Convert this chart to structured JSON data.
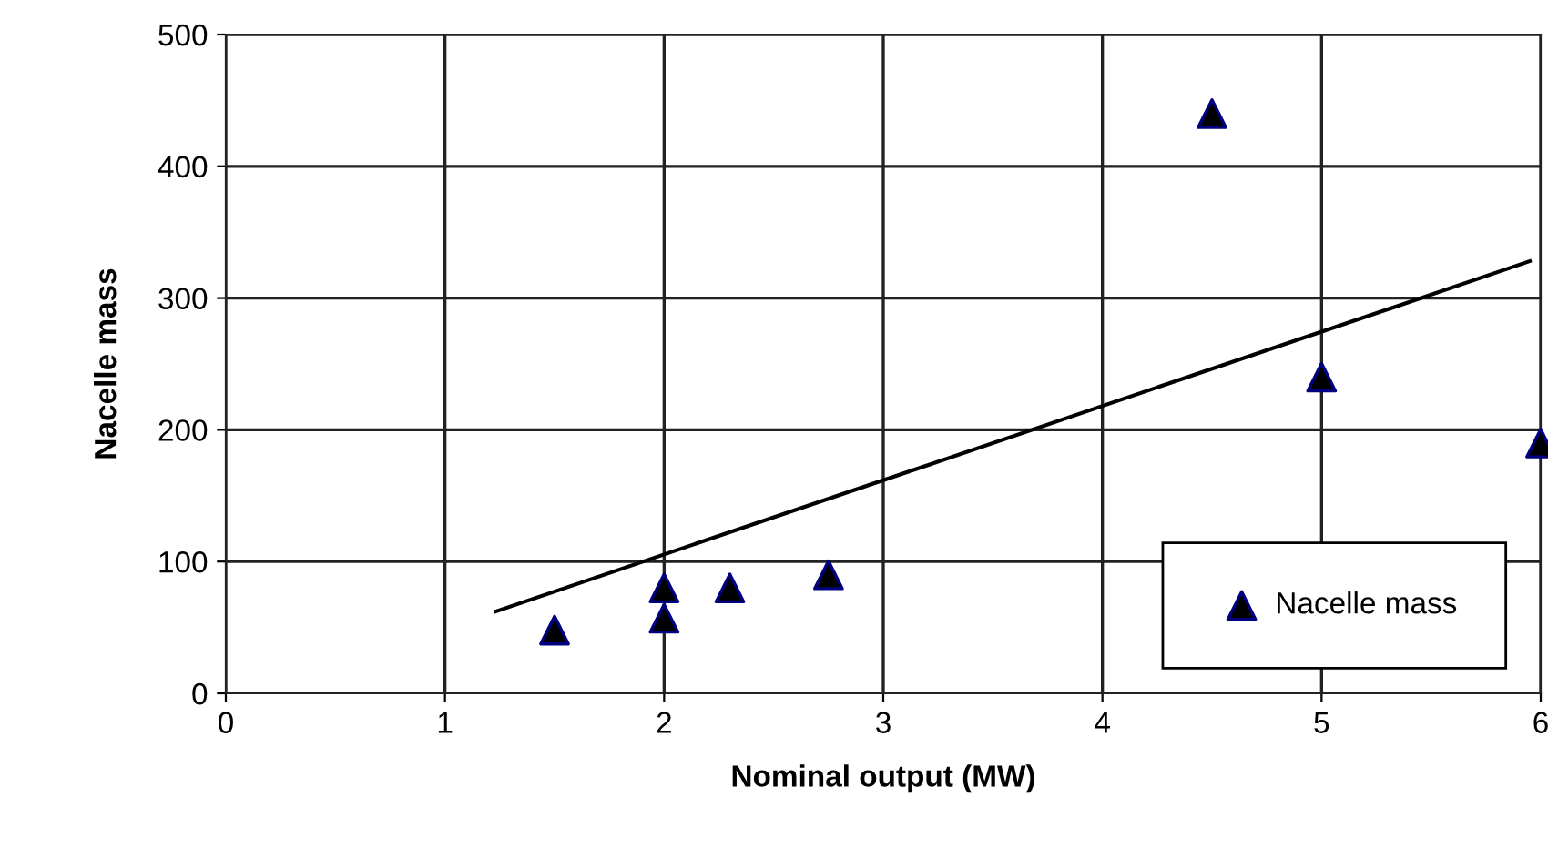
{
  "chart_data": {
    "type": "scatter",
    "xlabel": "Nominal output (MW)",
    "ylabel": "Nacelle mass",
    "series": [
      {
        "name": "Nacelle mass",
        "color": "#000000",
        "marker": "triangle",
        "x": [
          1.5,
          2,
          2,
          2.3,
          2.75,
          4.5,
          5,
          6
        ],
        "values": [
          48,
          80,
          57,
          80,
          90,
          440,
          240,
          190
        ]
      },
      {
        "type": "line",
        "color": "#000000",
        "x": [
          1.23,
          5.95
        ],
        "values": [
          62,
          328
        ]
      }
    ],
    "xlim": [
      0,
      6
    ],
    "xticks": [
      0,
      1,
      2,
      3,
      4,
      5,
      6
    ],
    "ylim": [
      0,
      500
    ],
    "yticks": [
      0,
      100,
      200,
      300,
      400,
      500
    ],
    "grid": true,
    "legend": "bottom right"
  }
}
